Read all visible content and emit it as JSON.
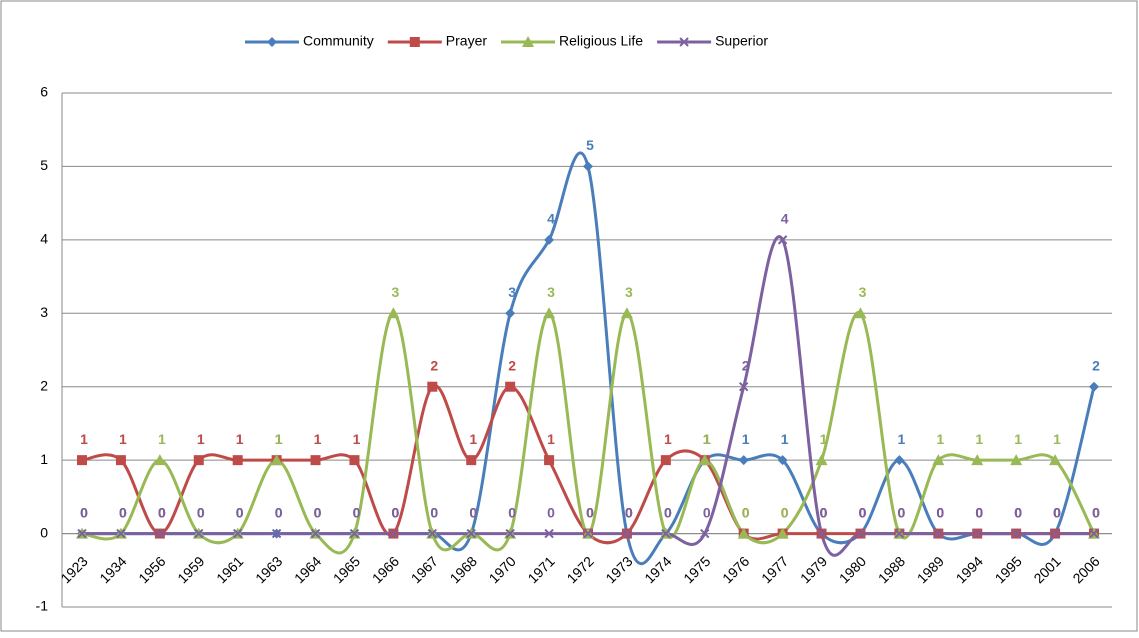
{
  "chart_data": {
    "type": "line",
    "smooth": true,
    "categories": [
      "1923",
      "1934",
      "1956",
      "1959",
      "1961",
      "1963",
      "1964",
      "1965",
      "1966",
      "1967",
      "1968",
      "1970",
      "1971",
      "1972",
      "1973",
      "1974",
      "1975",
      "1976",
      "1977",
      "1979",
      "1980",
      "1988",
      "1989",
      "1994",
      "1995",
      "2001",
      "2006"
    ],
    "series": [
      {
        "name": "Community",
        "color": "#4a7ebb",
        "marker": "diamond",
        "values": [
          0,
          0,
          0,
          0,
          0,
          0,
          0,
          0,
          0,
          0,
          0,
          3,
          4,
          5,
          0,
          0,
          1,
          1,
          1,
          0,
          0,
          1,
          0,
          0,
          0,
          0,
          2
        ]
      },
      {
        "name": "Prayer",
        "color": "#be4b48",
        "marker": "square",
        "values": [
          1,
          1,
          0,
          1,
          1,
          1,
          1,
          1,
          0,
          2,
          1,
          2,
          1,
          0,
          0,
          1,
          1,
          0,
          0,
          0,
          0,
          0,
          0,
          0,
          0,
          0,
          0
        ]
      },
      {
        "name": "Religious Life",
        "color": "#98b954",
        "marker": "triangle",
        "values": [
          0,
          0,
          1,
          0,
          0,
          1,
          0,
          0,
          3,
          0,
          0,
          0,
          3,
          0,
          3,
          0,
          1,
          0,
          0,
          1,
          3,
          0,
          1,
          1,
          1,
          1,
          0
        ]
      },
      {
        "name": "Superior",
        "color": "#7d60a0",
        "marker": "x",
        "values": [
          0,
          0,
          0,
          0,
          0,
          0,
          0,
          0,
          0,
          0,
          0,
          0,
          0,
          0,
          0,
          0,
          0,
          2,
          4,
          0,
          0,
          0,
          0,
          0,
          0,
          0,
          0
        ]
      }
    ],
    "ylim": [
      -1,
      6
    ],
    "yticks": [
      -1,
      0,
      1,
      2,
      3,
      4,
      5,
      6
    ],
    "grid": true,
    "legend": "top"
  }
}
